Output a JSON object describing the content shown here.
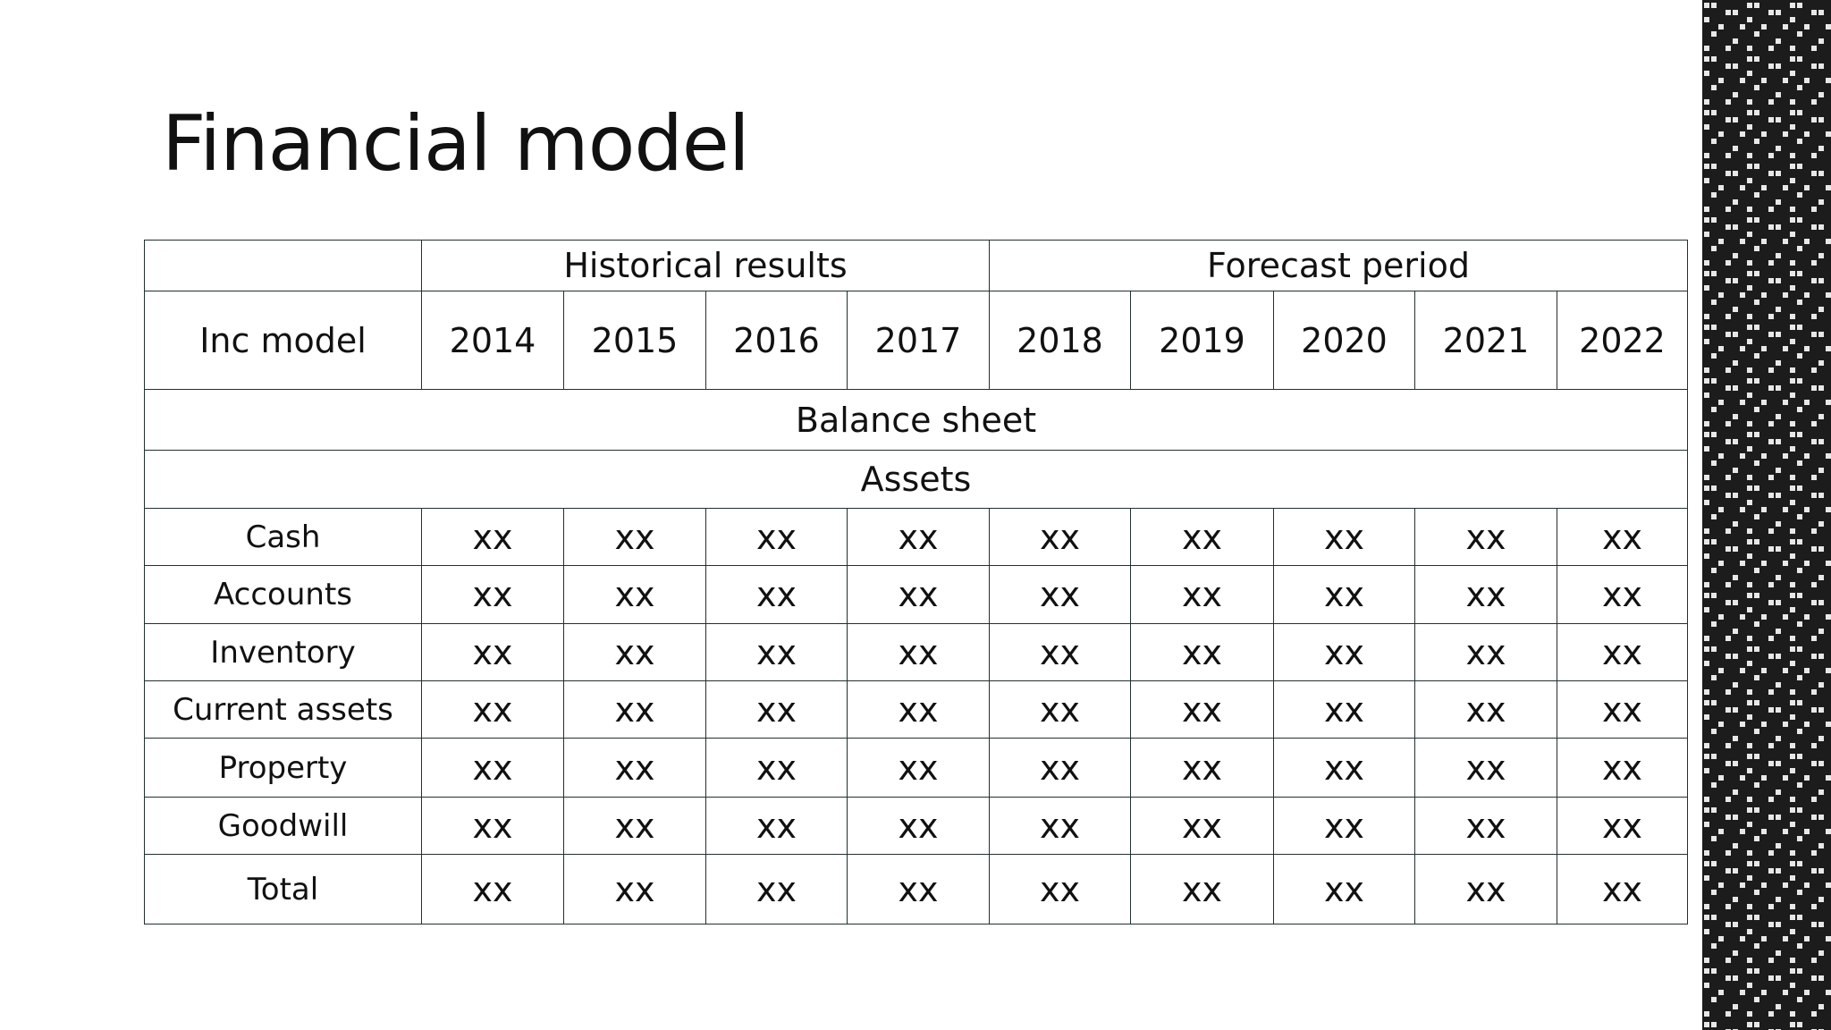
{
  "title": "Financial model",
  "table": {
    "groups": [
      "Historical results",
      "Forecast period"
    ],
    "header": [
      "Inc model",
      "2014",
      "2015",
      "2016",
      "2017",
      "2018",
      "2019",
      "2020",
      "2021",
      "2022"
    ],
    "section": "Balance sheet",
    "subsection": "Assets",
    "rows": [
      [
        "Cash",
        "xx",
        "xx",
        "xx",
        "xx",
        "xx",
        "xx",
        "xx",
        "xx",
        "xx"
      ],
      [
        "Accounts",
        "xx",
        "xx",
        "xx",
        "xx",
        "xx",
        "xx",
        "xx",
        "xx",
        "xx"
      ],
      [
        "Inventory",
        "xx",
        "xx",
        "xx",
        "xx",
        "xx",
        "xx",
        "xx",
        "xx",
        "xx"
      ],
      [
        "Current assets",
        "xx",
        "xx",
        "xx",
        "xx",
        "xx",
        "xx",
        "xx",
        "xx",
        "xx"
      ],
      [
        "Property",
        "xx",
        "xx",
        "xx",
        "xx",
        "xx",
        "xx",
        "xx",
        "xx",
        "xx"
      ],
      [
        "Goodwill",
        "xx",
        "xx",
        "xx",
        "xx",
        "xx",
        "xx",
        "xx",
        "xx",
        "xx"
      ],
      [
        "Total",
        "xx",
        "xx",
        "xx",
        "xx",
        "xx",
        "xx",
        "xx",
        "xx",
        "xx"
      ]
    ]
  }
}
